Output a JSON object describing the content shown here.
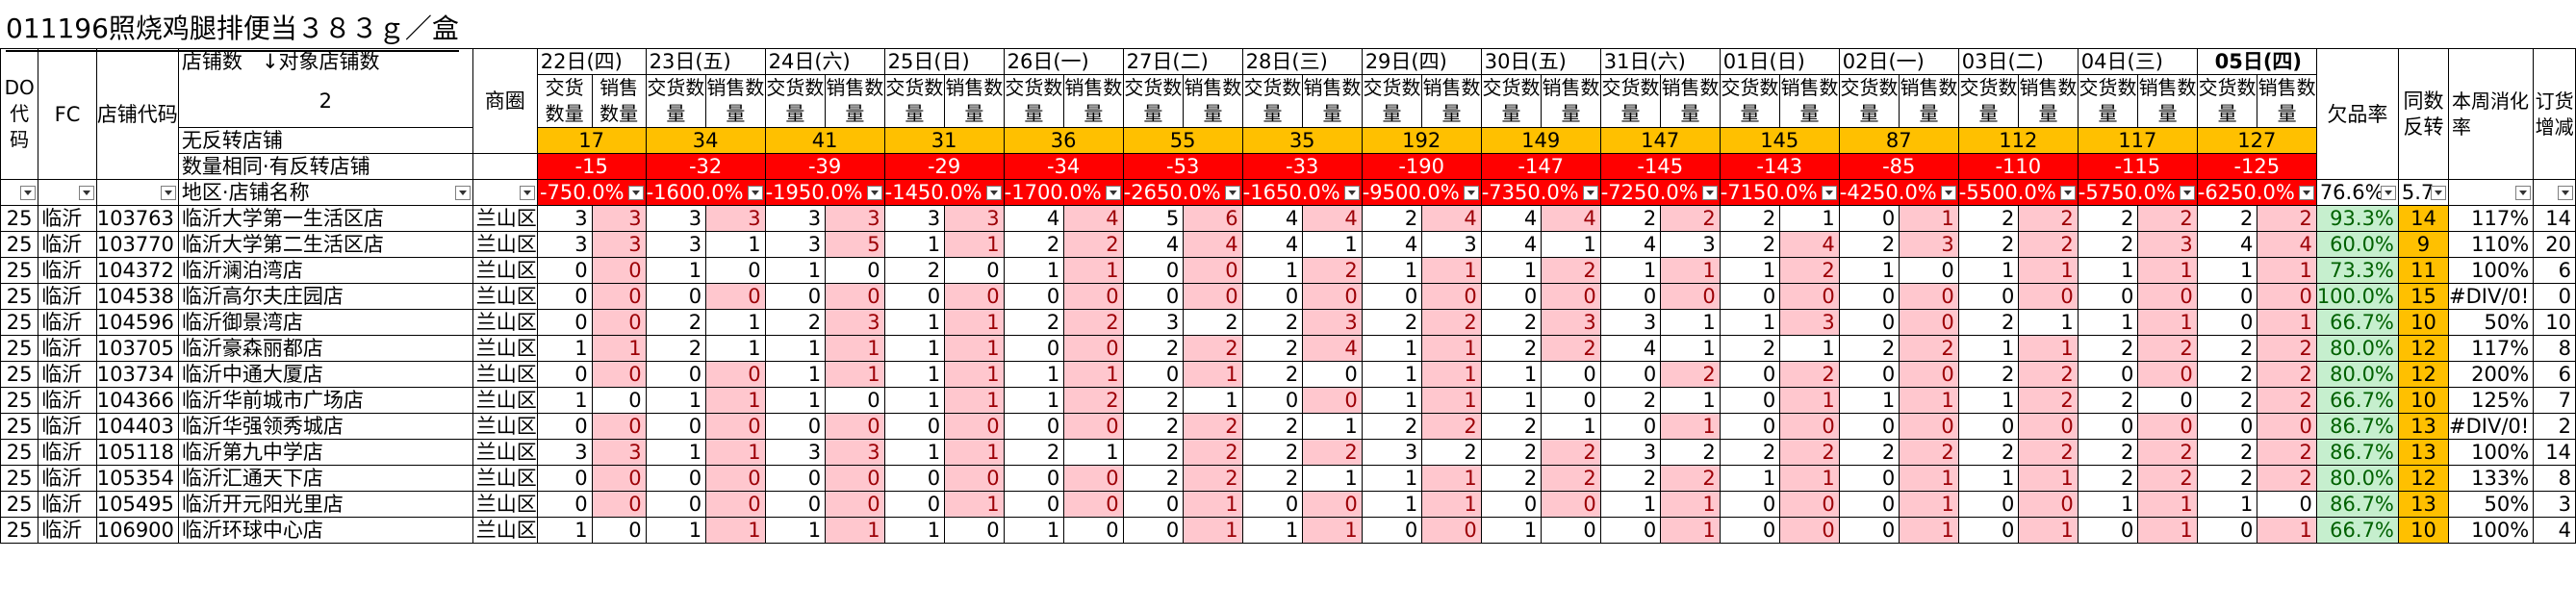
{
  "title": "011196照烧鸡腿排便当３８３ｇ／盒",
  "headers": {
    "do_code": "DO代码",
    "fc": "FC",
    "store_code": "店铺代码",
    "store_count_label": "店铺数",
    "target_store_count_label": "↓对象店铺数",
    "store_count_value": "2",
    "district": "商圈",
    "no_reverse_label": "无反转店铺",
    "same_count_label": "数量相同·有反转店铺",
    "region_store_label": "地区·店铺名称",
    "out_of_stock_rate": "欠品率",
    "same_reverse": "同数反转",
    "weekly_consumption": "本周消化率",
    "order_change": "订货增减",
    "delivery_qty": "交货数量",
    "sales_qty": "销售数量"
  },
  "dates": [
    "22日(四)",
    "23日(五)",
    "24日(六)",
    "25日(日)",
    "26日(一)",
    "27日(二)",
    "28日(三)",
    "29日(四)",
    "30日(五)",
    "31日(六)",
    "01日(日)",
    "02日(一)",
    "03日(二)",
    "04日(三)",
    "05日(四)"
  ],
  "no_reverse_values": [
    "17",
    "34",
    "41",
    "31",
    "36",
    "55",
    "35",
    "192",
    "149",
    "147",
    "145",
    "87",
    "112",
    "117",
    "127"
  ],
  "same_count_values": [
    "-15",
    "-32",
    "-39",
    "-29",
    "-34",
    "-53",
    "-33",
    "-190",
    "-147",
    "-145",
    "-143",
    "-85",
    "-110",
    "-115",
    "-125"
  ],
  "filter_values": [
    "-750.0%",
    "-1600.0%",
    "-1950.0%",
    "-1450.0%",
    "-1700.0%",
    "-2650.0%",
    "-1650.0%",
    "-9500.0%",
    "-7350.0%",
    "-7250.0%",
    "-7150.0%",
    "-4250.0%",
    "-5500.0%",
    "-5750.0%",
    "-6250.0%"
  ],
  "filter_rate": "76.6%",
  "filter_same": "5.7",
  "rows": [
    {
      "do": "25",
      "fc": "临沂",
      "code": "103763",
      "name": "临沂大学第一生活区店",
      "area": "兰山区",
      "pairs": [
        [
          "3",
          "3"
        ],
        [
          "3",
          "3"
        ],
        [
          "3",
          "3"
        ],
        [
          "3",
          "3"
        ],
        [
          "4",
          "4"
        ],
        [
          "5",
          "6"
        ],
        [
          "4",
          "4"
        ],
        [
          "2",
          "4"
        ],
        [
          "4",
          "4"
        ],
        [
          "2",
          "2"
        ],
        [
          "2",
          "1"
        ],
        [
          "0",
          "1"
        ],
        [
          "2",
          "2"
        ],
        [
          "2",
          "2"
        ],
        [
          "2",
          "2"
        ]
      ],
      "rate": "93.3%",
      "same": "14",
      "cons": "117%",
      "order": "14"
    },
    {
      "do": "25",
      "fc": "临沂",
      "code": "103770",
      "name": "临沂大学第二生活区店",
      "area": "兰山区",
      "pairs": [
        [
          "3",
          "3"
        ],
        [
          "3",
          "1"
        ],
        [
          "3",
          "5"
        ],
        [
          "1",
          "1"
        ],
        [
          "2",
          "2"
        ],
        [
          "4",
          "4"
        ],
        [
          "4",
          "1"
        ],
        [
          "4",
          "3"
        ],
        [
          "4",
          "1"
        ],
        [
          "4",
          "3"
        ],
        [
          "2",
          "4"
        ],
        [
          "2",
          "3"
        ],
        [
          "2",
          "2"
        ],
        [
          "2",
          "3"
        ],
        [
          "4",
          "4"
        ]
      ],
      "rate": "60.0%",
      "same": "9",
      "cons": "110%",
      "order": "20"
    },
    {
      "do": "25",
      "fc": "临沂",
      "code": "104372",
      "name": "临沂澜泊湾店",
      "area": "兰山区",
      "pairs": [
        [
          "0",
          "0"
        ],
        [
          "1",
          "0"
        ],
        [
          "1",
          "0"
        ],
        [
          "2",
          "0"
        ],
        [
          "1",
          "1"
        ],
        [
          "0",
          "0"
        ],
        [
          "1",
          "2"
        ],
        [
          "1",
          "1"
        ],
        [
          "1",
          "2"
        ],
        [
          "1",
          "1"
        ],
        [
          "1",
          "2"
        ],
        [
          "1",
          "0"
        ],
        [
          "1",
          "1"
        ],
        [
          "1",
          "1"
        ],
        [
          "1",
          "1"
        ]
      ],
      "rate": "73.3%",
      "same": "11",
      "cons": "100%",
      "order": "6"
    },
    {
      "do": "25",
      "fc": "临沂",
      "code": "104538",
      "name": "临沂高尔夫庄园店",
      "area": "兰山区",
      "pairs": [
        [
          "0",
          "0"
        ],
        [
          "0",
          "0"
        ],
        [
          "0",
          "0"
        ],
        [
          "0",
          "0"
        ],
        [
          "0",
          "0"
        ],
        [
          "0",
          "0"
        ],
        [
          "0",
          "0"
        ],
        [
          "0",
          "0"
        ],
        [
          "0",
          "0"
        ],
        [
          "0",
          "0"
        ],
        [
          "0",
          "0"
        ],
        [
          "0",
          "0"
        ],
        [
          "0",
          "0"
        ],
        [
          "0",
          "0"
        ],
        [
          "0",
          "0"
        ]
      ],
      "rate": "100.0%",
      "same": "15",
      "cons": "#DIV/0!",
      "order": "0"
    },
    {
      "do": "25",
      "fc": "临沂",
      "code": "104596",
      "name": "临沂御景湾店",
      "area": "兰山区",
      "pairs": [
        [
          "0",
          "0"
        ],
        [
          "2",
          "1"
        ],
        [
          "2",
          "3"
        ],
        [
          "1",
          "1"
        ],
        [
          "2",
          "2"
        ],
        [
          "3",
          "2"
        ],
        [
          "2",
          "3"
        ],
        [
          "2",
          "2"
        ],
        [
          "2",
          "3"
        ],
        [
          "3",
          "1"
        ],
        [
          "1",
          "3"
        ],
        [
          "0",
          "0"
        ],
        [
          "2",
          "1"
        ],
        [
          "1",
          "1"
        ],
        [
          "0",
          "1"
        ]
      ],
      "rate": "66.7%",
      "same": "10",
      "cons": "50%",
      "order": "10"
    },
    {
      "do": "25",
      "fc": "临沂",
      "code": "103705",
      "name": "临沂豪森丽都店",
      "area": "兰山区",
      "pairs": [
        [
          "1",
          "1"
        ],
        [
          "2",
          "1"
        ],
        [
          "1",
          "1"
        ],
        [
          "1",
          "1"
        ],
        [
          "0",
          "0"
        ],
        [
          "2",
          "2"
        ],
        [
          "2",
          "4"
        ],
        [
          "1",
          "1"
        ],
        [
          "2",
          "2"
        ],
        [
          "4",
          "1"
        ],
        [
          "2",
          "1"
        ],
        [
          "2",
          "2"
        ],
        [
          "1",
          "1"
        ],
        [
          "2",
          "2"
        ],
        [
          "2",
          "2"
        ]
      ],
      "rate": "80.0%",
      "same": "12",
      "cons": "117%",
      "order": "8"
    },
    {
      "do": "25",
      "fc": "临沂",
      "code": "103734",
      "name": "临沂中通大厦店",
      "area": "兰山区",
      "pairs": [
        [
          "0",
          "0"
        ],
        [
          "0",
          "0"
        ],
        [
          "1",
          "1"
        ],
        [
          "1",
          "1"
        ],
        [
          "1",
          "1"
        ],
        [
          "0",
          "1"
        ],
        [
          "2",
          "0"
        ],
        [
          "1",
          "1"
        ],
        [
          "1",
          "0"
        ],
        [
          "0",
          "2"
        ],
        [
          "0",
          "2"
        ],
        [
          "0",
          "0"
        ],
        [
          "2",
          "2"
        ],
        [
          "0",
          "0"
        ],
        [
          "2",
          "2"
        ]
      ],
      "rate": "80.0%",
      "same": "12",
      "cons": "200%",
      "order": "6"
    },
    {
      "do": "25",
      "fc": "临沂",
      "code": "104366",
      "name": "临沂华前城市广场店",
      "area": "兰山区",
      "pairs": [
        [
          "1",
          "0"
        ],
        [
          "1",
          "1"
        ],
        [
          "1",
          "0"
        ],
        [
          "1",
          "1"
        ],
        [
          "1",
          "2"
        ],
        [
          "2",
          "1"
        ],
        [
          "0",
          "0"
        ],
        [
          "1",
          "1"
        ],
        [
          "1",
          "0"
        ],
        [
          "2",
          "1"
        ],
        [
          "0",
          "1"
        ],
        [
          "1",
          "1"
        ],
        [
          "1",
          "2"
        ],
        [
          "2",
          "0"
        ],
        [
          "2",
          "2"
        ]
      ],
      "rate": "66.7%",
      "same": "10",
      "cons": "125%",
      "order": "7"
    },
    {
      "do": "25",
      "fc": "临沂",
      "code": "104403",
      "name": "临沂华强领秀城店",
      "area": "兰山区",
      "pairs": [
        [
          "0",
          "0"
        ],
        [
          "0",
          "0"
        ],
        [
          "0",
          "0"
        ],
        [
          "0",
          "0"
        ],
        [
          "0",
          "0"
        ],
        [
          "2",
          "2"
        ],
        [
          "2",
          "1"
        ],
        [
          "2",
          "2"
        ],
        [
          "2",
          "1"
        ],
        [
          "0",
          "1"
        ],
        [
          "0",
          "0"
        ],
        [
          "0",
          "0"
        ],
        [
          "0",
          "0"
        ],
        [
          "0",
          "0"
        ],
        [
          "0",
          "0"
        ]
      ],
      "rate": "86.7%",
      "same": "13",
      "cons": "#DIV/0!",
      "order": "2"
    },
    {
      "do": "25",
      "fc": "临沂",
      "code": "105118",
      "name": "临沂第九中学店",
      "area": "兰山区",
      "pairs": [
        [
          "3",
          "3"
        ],
        [
          "1",
          "1"
        ],
        [
          "3",
          "3"
        ],
        [
          "1",
          "1"
        ],
        [
          "2",
          "1"
        ],
        [
          "2",
          "2"
        ],
        [
          "2",
          "2"
        ],
        [
          "3",
          "2"
        ],
        [
          "2",
          "2"
        ],
        [
          "3",
          "2"
        ],
        [
          "2",
          "2"
        ],
        [
          "2",
          "2"
        ],
        [
          "2",
          "2"
        ],
        [
          "2",
          "2"
        ],
        [
          "2",
          "2"
        ]
      ],
      "rate": "86.7%",
      "same": "13",
      "cons": "100%",
      "order": "14"
    },
    {
      "do": "25",
      "fc": "临沂",
      "code": "105354",
      "name": "临沂汇通天下店",
      "area": "兰山区",
      "pairs": [
        [
          "0",
          "0"
        ],
        [
          "0",
          "0"
        ],
        [
          "0",
          "0"
        ],
        [
          "0",
          "0"
        ],
        [
          "0",
          "0"
        ],
        [
          "2",
          "2"
        ],
        [
          "2",
          "1"
        ],
        [
          "1",
          "1"
        ],
        [
          "2",
          "2"
        ],
        [
          "2",
          "2"
        ],
        [
          "1",
          "1"
        ],
        [
          "0",
          "1"
        ],
        [
          "1",
          "1"
        ],
        [
          "2",
          "2"
        ],
        [
          "2",
          "2"
        ]
      ],
      "rate": "80.0%",
      "same": "12",
      "cons": "133%",
      "order": "8"
    },
    {
      "do": "25",
      "fc": "临沂",
      "code": "105495",
      "name": "临沂开元阳光里店",
      "area": "兰山区",
      "pairs": [
        [
          "0",
          "0"
        ],
        [
          "0",
          "0"
        ],
        [
          "0",
          "0"
        ],
        [
          "0",
          "1"
        ],
        [
          "0",
          "0"
        ],
        [
          "0",
          "1"
        ],
        [
          "0",
          "0"
        ],
        [
          "1",
          "1"
        ],
        [
          "0",
          "0"
        ],
        [
          "1",
          "1"
        ],
        [
          "0",
          "0"
        ],
        [
          "0",
          "1"
        ],
        [
          "0",
          "0"
        ],
        [
          "1",
          "1"
        ],
        [
          "1",
          "0"
        ]
      ],
      "rate": "86.7%",
      "same": "13",
      "cons": "50%",
      "order": "3"
    },
    {
      "do": "25",
      "fc": "临沂",
      "code": "106900",
      "name": "临沂环球中心店",
      "area": "兰山区",
      "pairs": [
        [
          "1",
          "0"
        ],
        [
          "1",
          "1"
        ],
        [
          "1",
          "1"
        ],
        [
          "1",
          "0"
        ],
        [
          "1",
          "0"
        ],
        [
          "0",
          "1"
        ],
        [
          "1",
          "1"
        ],
        [
          "0",
          "0"
        ],
        [
          "1",
          "0"
        ],
        [
          "0",
          "1"
        ],
        [
          "0",
          "0"
        ],
        [
          "0",
          "1"
        ],
        [
          "0",
          "1"
        ],
        [
          "0",
          "1"
        ],
        [
          "0",
          "1"
        ]
      ],
      "rate": "66.7%",
      "same": "10",
      "cons": "100%",
      "order": "4"
    }
  ]
}
